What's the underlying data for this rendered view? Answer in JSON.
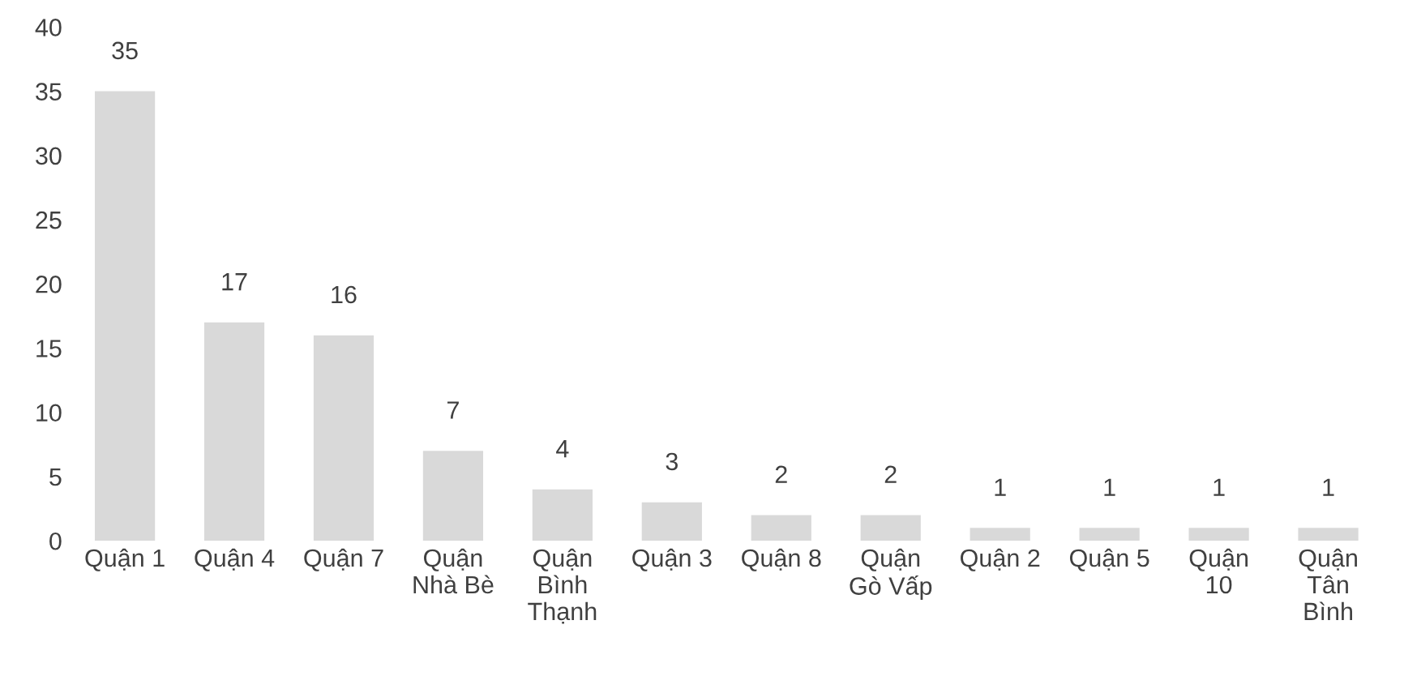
{
  "chart_data": {
    "type": "bar",
    "categories": [
      "Quận 1",
      "Quận 4",
      "Quận 7",
      "Quận\nNhà Bè",
      "Quận\nBình\nThạnh",
      "Quận 3",
      "Quận 8",
      "Quận\nGò Vấp",
      "Quận 2",
      "Quận 5",
      "Quận\n10",
      "Quận\nTân\nBình"
    ],
    "values": [
      35,
      17,
      16,
      7,
      4,
      3,
      2,
      2,
      1,
      1,
      1,
      1
    ],
    "color": "#d9d9d9",
    "ylim": [
      0,
      40
    ],
    "yticks": [
      0,
      5,
      10,
      15,
      20,
      25,
      30,
      35,
      40
    ],
    "data_labels": true,
    "grid": false,
    "legend": false
  }
}
